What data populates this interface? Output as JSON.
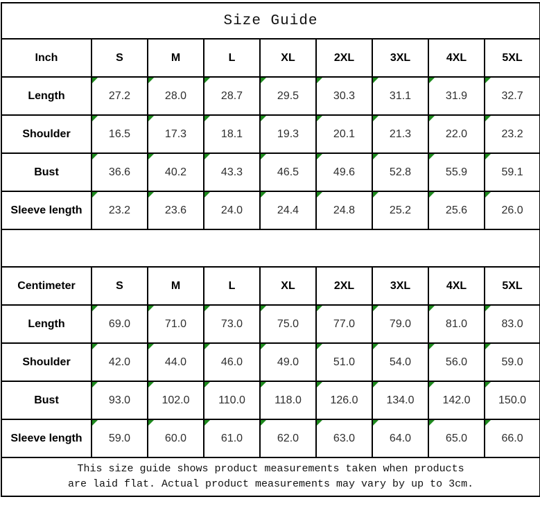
{
  "title": "Size Guide",
  "colors": {
    "border": "#000000",
    "background": "#ffffff",
    "marker_green": "#1e8a1e",
    "value_text": "#2e2e2e"
  },
  "icons": {
    "value_cell_marker": "green-corner-triangle"
  },
  "inch_table": {
    "unit_header": "Inch",
    "sizes": [
      "S",
      "M",
      "L",
      "XL",
      "2XL",
      "3XL",
      "4XL",
      "5XL"
    ],
    "rows": [
      {
        "label": "Length",
        "values": [
          "27.2",
          "28.0",
          "28.7",
          "29.5",
          "30.3",
          "31.1",
          "31.9",
          "32.7"
        ]
      },
      {
        "label": "Shoulder",
        "values": [
          "16.5",
          "17.3",
          "18.1",
          "19.3",
          "20.1",
          "21.3",
          "22.0",
          "23.2"
        ]
      },
      {
        "label": "Bust",
        "values": [
          "36.6",
          "40.2",
          "43.3",
          "46.5",
          "49.6",
          "52.8",
          "55.9",
          "59.1"
        ]
      },
      {
        "label": "Sleeve length",
        "values": [
          "23.2",
          "23.6",
          "24.0",
          "24.4",
          "24.8",
          "25.2",
          "25.6",
          "26.0"
        ]
      }
    ]
  },
  "cm_table": {
    "unit_header": "Centimeter",
    "sizes": [
      "S",
      "M",
      "L",
      "XL",
      "2XL",
      "3XL",
      "4XL",
      "5XL"
    ],
    "rows": [
      {
        "label": "Length",
        "values": [
          "69.0",
          "71.0",
          "73.0",
          "75.0",
          "77.0",
          "79.0",
          "81.0",
          "83.0"
        ]
      },
      {
        "label": "Shoulder",
        "values": [
          "42.0",
          "44.0",
          "46.0",
          "49.0",
          "51.0",
          "54.0",
          "56.0",
          "59.0"
        ]
      },
      {
        "label": "Bust",
        "values": [
          "93.0",
          "102.0",
          "110.0",
          "118.0",
          "126.0",
          "134.0",
          "142.0",
          "150.0"
        ]
      },
      {
        "label": "Sleeve length",
        "values": [
          "59.0",
          "60.0",
          "61.0",
          "62.0",
          "63.0",
          "64.0",
          "65.0",
          "66.0"
        ]
      }
    ]
  },
  "footer": {
    "line1": "This size guide shows product measurements taken when products",
    "line2": "are laid flat. Actual product measurements may vary by up to 3cm."
  }
}
